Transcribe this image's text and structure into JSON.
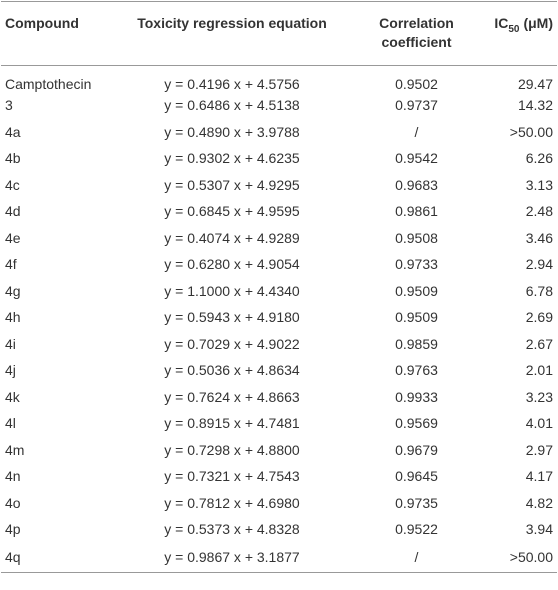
{
  "table": {
    "header": [
      "Compound",
      "Toxicity regression equation",
      "Correlation coefficient",
      {
        "main": "IC",
        "sub": "50",
        "rest": "(μM)"
      }
    ],
    "rows": [
      [
        "Camptothecin",
        "y = 0.4196 x + 4.5756",
        "0.9502",
        "29.47"
      ],
      [
        "3",
        "y = 0.6486 x + 4.5138",
        "0.9737",
        "14.32"
      ],
      [
        "4a",
        "y = 0.4890 x + 3.9788",
        "/",
        ">50.00"
      ],
      [
        "4b",
        "y = 0.9302 x + 4.6235",
        "0.9542",
        "6.26"
      ],
      [
        "4c",
        "y = 0.5307 x + 4.9295",
        "0.9683",
        "3.13"
      ],
      [
        "4d",
        "y = 0.6845 x + 4.9595",
        "0.9861",
        "2.48"
      ],
      [
        "4e",
        "y = 0.4074 x + 4.9289",
        "0.9508",
        "3.46"
      ],
      [
        "4f",
        "y = 0.6280 x + 4.9054",
        "0.9733",
        "2.94"
      ],
      [
        "4g",
        "y = 1.1000 x + 4.4340",
        "0.9509",
        "6.78"
      ],
      [
        "4h",
        "y = 0.5943 x + 4.9180",
        "0.9509",
        "2.69"
      ],
      [
        "4i",
        "y = 0.7029 x + 4.9022",
        "0.9859",
        "2.67"
      ],
      [
        "4j",
        "y = 0.5036 x + 4.8634",
        "0.9763",
        "2.01"
      ],
      [
        "4k",
        "y = 0.7624 x + 4.8663",
        "0.9933",
        "3.23"
      ],
      [
        "4l",
        "y = 0.8915 x + 4.7481",
        "0.9569",
        "4.01"
      ],
      [
        "4m",
        "y = 0.7298 x + 4.8800",
        "0.9679",
        "2.97"
      ],
      [
        "4n",
        "y = 0.7321 x + 4.7543",
        "0.9645",
        "4.17"
      ],
      [
        "4o",
        "y = 0.7812 x + 4.6980",
        "0.9735",
        "4.82"
      ],
      [
        "4p",
        "y = 0.5373 x + 4.8328",
        "0.9522",
        "3.94"
      ],
      [
        "4q",
        "y = 0.9867 x + 3.1877",
        "/",
        ">50.00"
      ]
    ]
  }
}
